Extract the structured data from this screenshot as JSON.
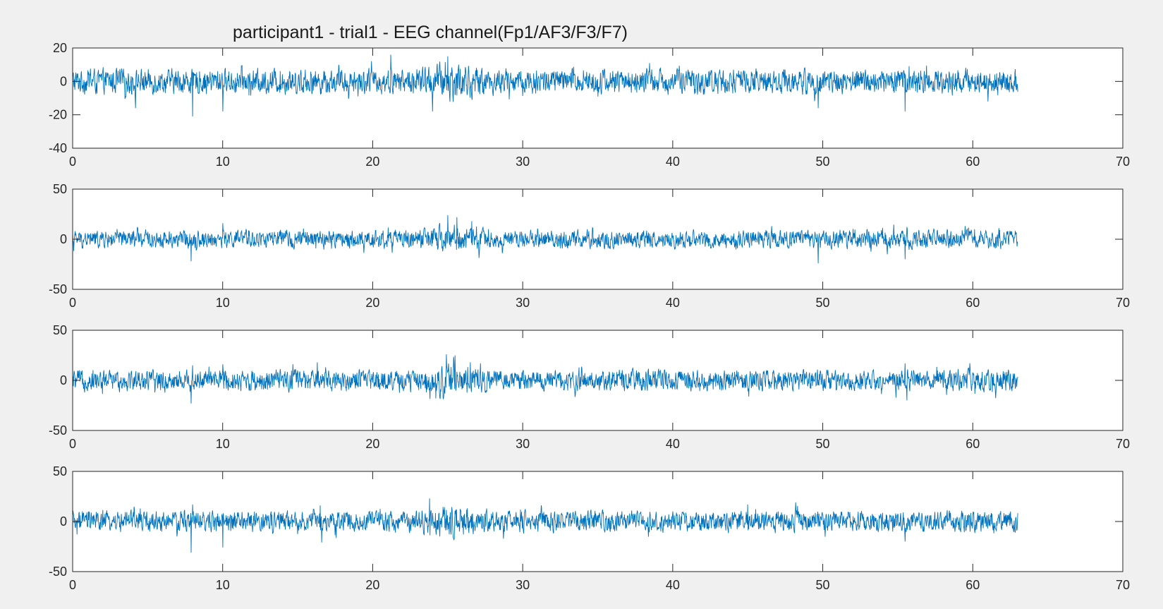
{
  "title": "participant1 - trial1 - EEG channel(Fp1/AF3/F3/F7)",
  "colors": {
    "background": "#f0f0f0",
    "axes_bg": "#ffffff",
    "axis": "#262626",
    "series": "#0072bd"
  },
  "chart_data": [
    {
      "type": "line",
      "title": "participant1 - trial1 - EEG channel(Fp1/AF3/F3/F7)",
      "xlabel": "",
      "ylabel": "",
      "xlim": [
        0,
        70
      ],
      "ylim": [
        -40,
        20
      ],
      "xticks": [
        0,
        10,
        20,
        30,
        40,
        50,
        60,
        70
      ],
      "yticks": [
        -40,
        -20,
        0,
        20
      ],
      "grid": false,
      "series": [
        {
          "x_range": [
            0,
            63
          ],
          "baseline": 0,
          "typical_amplitude": 5,
          "peaks": [
            [
              8,
              13
            ],
            [
              8,
              -21
            ],
            [
              4.2,
              -16
            ],
            [
              10,
              -18
            ],
            [
              21.2,
              16
            ],
            [
              24,
              -18
            ],
            [
              25,
              15
            ],
            [
              49.7,
              -16
            ],
            [
              55.5,
              -18
            ]
          ]
        }
      ]
    },
    {
      "type": "line",
      "xlabel": "",
      "ylabel": "",
      "xlim": [
        0,
        70
      ],
      "ylim": [
        -50,
        50
      ],
      "xticks": [
        0,
        10,
        20,
        30,
        40,
        50,
        60,
        70
      ],
      "yticks": [
        -50,
        0,
        50
      ],
      "grid": false,
      "series": [
        {
          "x_range": [
            0,
            63
          ],
          "baseline": 0,
          "typical_amplitude": 6,
          "peaks": [
            [
              7.9,
              -22
            ],
            [
              10,
              16
            ],
            [
              25,
              24
            ],
            [
              25.6,
              22
            ],
            [
              26.6,
              18
            ],
            [
              49.7,
              -24
            ],
            [
              55.5,
              -20
            ]
          ]
        }
      ]
    },
    {
      "type": "line",
      "xlabel": "",
      "ylabel": "",
      "xlim": [
        0,
        70
      ],
      "ylim": [
        -50,
        50
      ],
      "xticks": [
        0,
        10,
        20,
        30,
        40,
        50,
        60,
        70
      ],
      "yticks": [
        -50,
        0,
        50
      ],
      "grid": false,
      "series": [
        {
          "x_range": [
            0,
            63
          ],
          "baseline": 0,
          "typical_amplitude": 7,
          "peaks": [
            [
              7.9,
              -23
            ],
            [
              8,
              15
            ],
            [
              10,
              16
            ],
            [
              16.3,
              18
            ],
            [
              24.2,
              -18
            ],
            [
              24.9,
              26
            ],
            [
              25.5,
              25
            ],
            [
              26.5,
              18
            ],
            [
              55.5,
              17
            ],
            [
              55.6,
              -20
            ]
          ]
        }
      ]
    },
    {
      "type": "line",
      "xlabel": "",
      "ylabel": "",
      "xlim": [
        0,
        70
      ],
      "ylim": [
        -50,
        50
      ],
      "xticks": [
        0,
        10,
        20,
        30,
        40,
        50,
        60,
        70
      ],
      "yticks": [
        -50,
        0,
        50
      ],
      "grid": false,
      "series": [
        {
          "x_range": [
            0,
            63
          ],
          "baseline": 0,
          "typical_amplitude": 7,
          "peaks": [
            [
              7.9,
              -31
            ],
            [
              8,
              17
            ],
            [
              10,
              -26
            ],
            [
              16.5,
              16
            ],
            [
              16.6,
              -21
            ],
            [
              23.8,
              23
            ],
            [
              45,
              17
            ],
            [
              55.5,
              -20
            ]
          ]
        }
      ]
    }
  ]
}
